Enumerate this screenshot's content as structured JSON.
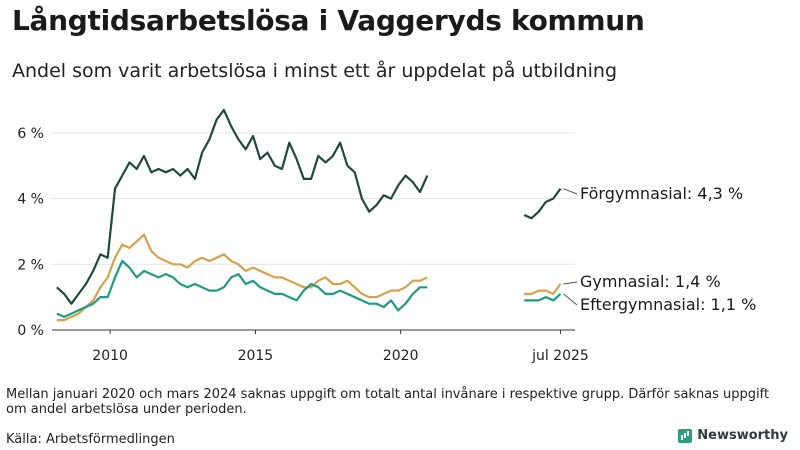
{
  "title": "Långtidsarbetslösa i Vaggeryds kommun",
  "subtitle": "Andel som varit arbetslösa i minst ett år uppdelat på utbildning",
  "note": "Mellan januari 2020 och mars 2024 saknas uppgift om totalt antal invånare i respektive grupp. Därför saknas uppgift om andel arbetslösa under perioden.",
  "source": "Källa: Arbetsförmedlingen",
  "brand": "Newsworthy",
  "colors": {
    "forgymnasial": "#1e4a3e",
    "gymnasial": "#d4a24c",
    "eftergymnasial": "#1f9a85",
    "axis": "#222222"
  },
  "chart_data": {
    "type": "line",
    "ylim": [
      0,
      7
    ],
    "y_ticks": [
      0,
      2,
      4,
      6
    ],
    "y_tick_labels": [
      "0 %",
      "2 %",
      "4 %",
      "6 %"
    ],
    "x_tick_labels": [
      "2010",
      "2015",
      "2020",
      "jul 2025"
    ],
    "grid": true,
    "series": [
      {
        "name": "Förgymnasial",
        "end_label": "Förgymnasial: 4,3 %",
        "color": "#1e4a3e",
        "segments": [
          [
            [
              "2008-03",
              1.3
            ],
            [
              "2008-06",
              1.1
            ],
            [
              "2008-09",
              0.8
            ],
            [
              "2008-12",
              1.1
            ],
            [
              "2009-03",
              1.4
            ],
            [
              "2009-06",
              1.8
            ],
            [
              "2009-09",
              2.3
            ],
            [
              "2009-12",
              2.2
            ],
            [
              "2010-01",
              2.9
            ],
            [
              "2010-03",
              4.3
            ],
            [
              "2010-06",
              4.7
            ],
            [
              "2010-09",
              5.1
            ],
            [
              "2010-12",
              4.9
            ],
            [
              "2011-03",
              5.3
            ],
            [
              "2011-06",
              4.8
            ],
            [
              "2011-09",
              4.9
            ],
            [
              "2011-12",
              4.8
            ],
            [
              "2012-03",
              4.9
            ],
            [
              "2012-06",
              4.7
            ],
            [
              "2012-09",
              4.9
            ],
            [
              "2012-12",
              4.6
            ],
            [
              "2013-03",
              5.4
            ],
            [
              "2013-06",
              5.8
            ],
            [
              "2013-09",
              6.4
            ],
            [
              "2013-12",
              6.7
            ],
            [
              "2014-03",
              6.2
            ],
            [
              "2014-06",
              5.8
            ],
            [
              "2014-09",
              5.5
            ],
            [
              "2014-12",
              5.9
            ],
            [
              "2015-03",
              5.2
            ],
            [
              "2015-06",
              5.4
            ],
            [
              "2015-09",
              5.0
            ],
            [
              "2015-12",
              4.9
            ],
            [
              "2016-03",
              5.7
            ],
            [
              "2016-06",
              5.2
            ],
            [
              "2016-09",
              4.6
            ],
            [
              "2016-12",
              4.6
            ],
            [
              "2017-03",
              5.3
            ],
            [
              "2017-06",
              5.1
            ],
            [
              "2017-09",
              5.3
            ],
            [
              "2017-12",
              5.7
            ],
            [
              "2018-03",
              5.0
            ],
            [
              "2018-06",
              4.8
            ],
            [
              "2018-09",
              4.0
            ],
            [
              "2018-12",
              3.6
            ],
            [
              "2019-03",
              3.8
            ],
            [
              "2019-06",
              4.1
            ],
            [
              "2019-09",
              4.0
            ],
            [
              "2019-12",
              4.4
            ],
            [
              "2020-03",
              4.7
            ],
            [
              "2020-06",
              4.5
            ],
            [
              "2020-09",
              4.2
            ],
            [
              "2020-12",
              4.7
            ]
          ],
          [
            [
              "2024-04",
              3.5
            ],
            [
              "2024-07",
              3.4
            ],
            [
              "2024-10",
              3.6
            ],
            [
              "2025-01",
              3.9
            ],
            [
              "2025-04",
              4.0
            ],
            [
              "2025-07",
              4.3
            ]
          ]
        ]
      },
      {
        "name": "Gymnasial",
        "end_label": "Gymnasial: 1,4 %",
        "color": "#d4a24c",
        "segments": [
          [
            [
              "2008-03",
              0.3
            ],
            [
              "2008-06",
              0.3
            ],
            [
              "2008-09",
              0.4
            ],
            [
              "2008-12",
              0.5
            ],
            [
              "2009-03",
              0.7
            ],
            [
              "2009-06",
              0.9
            ],
            [
              "2009-09",
              1.3
            ],
            [
              "2009-12",
              1.6
            ],
            [
              "2010-03",
              2.2
            ],
            [
              "2010-06",
              2.6
            ],
            [
              "2010-09",
              2.5
            ],
            [
              "2010-12",
              2.7
            ],
            [
              "2011-03",
              2.9
            ],
            [
              "2011-06",
              2.4
            ],
            [
              "2011-09",
              2.2
            ],
            [
              "2011-12",
              2.1
            ],
            [
              "2012-03",
              2.0
            ],
            [
              "2012-06",
              2.0
            ],
            [
              "2012-09",
              1.9
            ],
            [
              "2012-12",
              2.1
            ],
            [
              "2013-03",
              2.2
            ],
            [
              "2013-06",
              2.1
            ],
            [
              "2013-09",
              2.2
            ],
            [
              "2013-12",
              2.3
            ],
            [
              "2014-03",
              2.1
            ],
            [
              "2014-06",
              2.0
            ],
            [
              "2014-09",
              1.8
            ],
            [
              "2014-12",
              1.9
            ],
            [
              "2015-03",
              1.8
            ],
            [
              "2015-06",
              1.7
            ],
            [
              "2015-09",
              1.6
            ],
            [
              "2015-12",
              1.6
            ],
            [
              "2016-03",
              1.5
            ],
            [
              "2016-06",
              1.4
            ],
            [
              "2016-09",
              1.3
            ],
            [
              "2016-12",
              1.3
            ],
            [
              "2017-03",
              1.5
            ],
            [
              "2017-06",
              1.6
            ],
            [
              "2017-09",
              1.4
            ],
            [
              "2017-12",
              1.4
            ],
            [
              "2018-03",
              1.5
            ],
            [
              "2018-06",
              1.3
            ],
            [
              "2018-09",
              1.1
            ],
            [
              "2018-12",
              1.0
            ],
            [
              "2019-03",
              1.0
            ],
            [
              "2019-06",
              1.1
            ],
            [
              "2019-09",
              1.2
            ],
            [
              "2019-12",
              1.2
            ],
            [
              "2020-03",
              1.3
            ],
            [
              "2020-06",
              1.5
            ],
            [
              "2020-09",
              1.5
            ],
            [
              "2020-12",
              1.6
            ]
          ],
          [
            [
              "2024-04",
              1.1
            ],
            [
              "2024-07",
              1.1
            ],
            [
              "2024-10",
              1.2
            ],
            [
              "2025-01",
              1.2
            ],
            [
              "2025-04",
              1.1
            ],
            [
              "2025-07",
              1.4
            ]
          ]
        ]
      },
      {
        "name": "Eftergymnasial",
        "end_label": "Eftergymnasial: 1,1 %",
        "color": "#1f9a85",
        "segments": [
          [
            [
              "2008-03",
              0.5
            ],
            [
              "2008-06",
              0.4
            ],
            [
              "2008-09",
              0.5
            ],
            [
              "2008-12",
              0.6
            ],
            [
              "2009-03",
              0.7
            ],
            [
              "2009-06",
              0.8
            ],
            [
              "2009-09",
              1.0
            ],
            [
              "2009-12",
              1.0
            ],
            [
              "2010-03",
              1.6
            ],
            [
              "2010-06",
              2.1
            ],
            [
              "2010-09",
              1.9
            ],
            [
              "2010-12",
              1.6
            ],
            [
              "2011-03",
              1.8
            ],
            [
              "2011-06",
              1.7
            ],
            [
              "2011-09",
              1.6
            ],
            [
              "2011-12",
              1.7
            ],
            [
              "2012-03",
              1.6
            ],
            [
              "2012-06",
              1.4
            ],
            [
              "2012-09",
              1.3
            ],
            [
              "2012-12",
              1.4
            ],
            [
              "2013-03",
              1.3
            ],
            [
              "2013-06",
              1.2
            ],
            [
              "2013-09",
              1.2
            ],
            [
              "2013-12",
              1.3
            ],
            [
              "2014-03",
              1.6
            ],
            [
              "2014-06",
              1.7
            ],
            [
              "2014-09",
              1.4
            ],
            [
              "2014-12",
              1.5
            ],
            [
              "2015-03",
              1.3
            ],
            [
              "2015-06",
              1.2
            ],
            [
              "2015-09",
              1.1
            ],
            [
              "2015-12",
              1.1
            ],
            [
              "2016-03",
              1.0
            ],
            [
              "2016-06",
              0.9
            ],
            [
              "2016-09",
              1.2
            ],
            [
              "2016-12",
              1.4
            ],
            [
              "2017-03",
              1.3
            ],
            [
              "2017-06",
              1.1
            ],
            [
              "2017-09",
              1.1
            ],
            [
              "2017-12",
              1.2
            ],
            [
              "2018-03",
              1.1
            ],
            [
              "2018-06",
              1.0
            ],
            [
              "2018-09",
              0.9
            ],
            [
              "2018-12",
              0.8
            ],
            [
              "2019-03",
              0.8
            ],
            [
              "2019-06",
              0.7
            ],
            [
              "2019-09",
              0.9
            ],
            [
              "2019-12",
              0.6
            ],
            [
              "2020-03",
              0.8
            ],
            [
              "2020-06",
              1.1
            ],
            [
              "2020-09",
              1.3
            ],
            [
              "2020-12",
              1.3
            ]
          ],
          [
            [
              "2024-04",
              0.9
            ],
            [
              "2024-07",
              0.9
            ],
            [
              "2024-10",
              0.9
            ],
            [
              "2025-01",
              1.0
            ],
            [
              "2025-04",
              0.9
            ],
            [
              "2025-07",
              1.1
            ]
          ]
        ]
      }
    ]
  }
}
